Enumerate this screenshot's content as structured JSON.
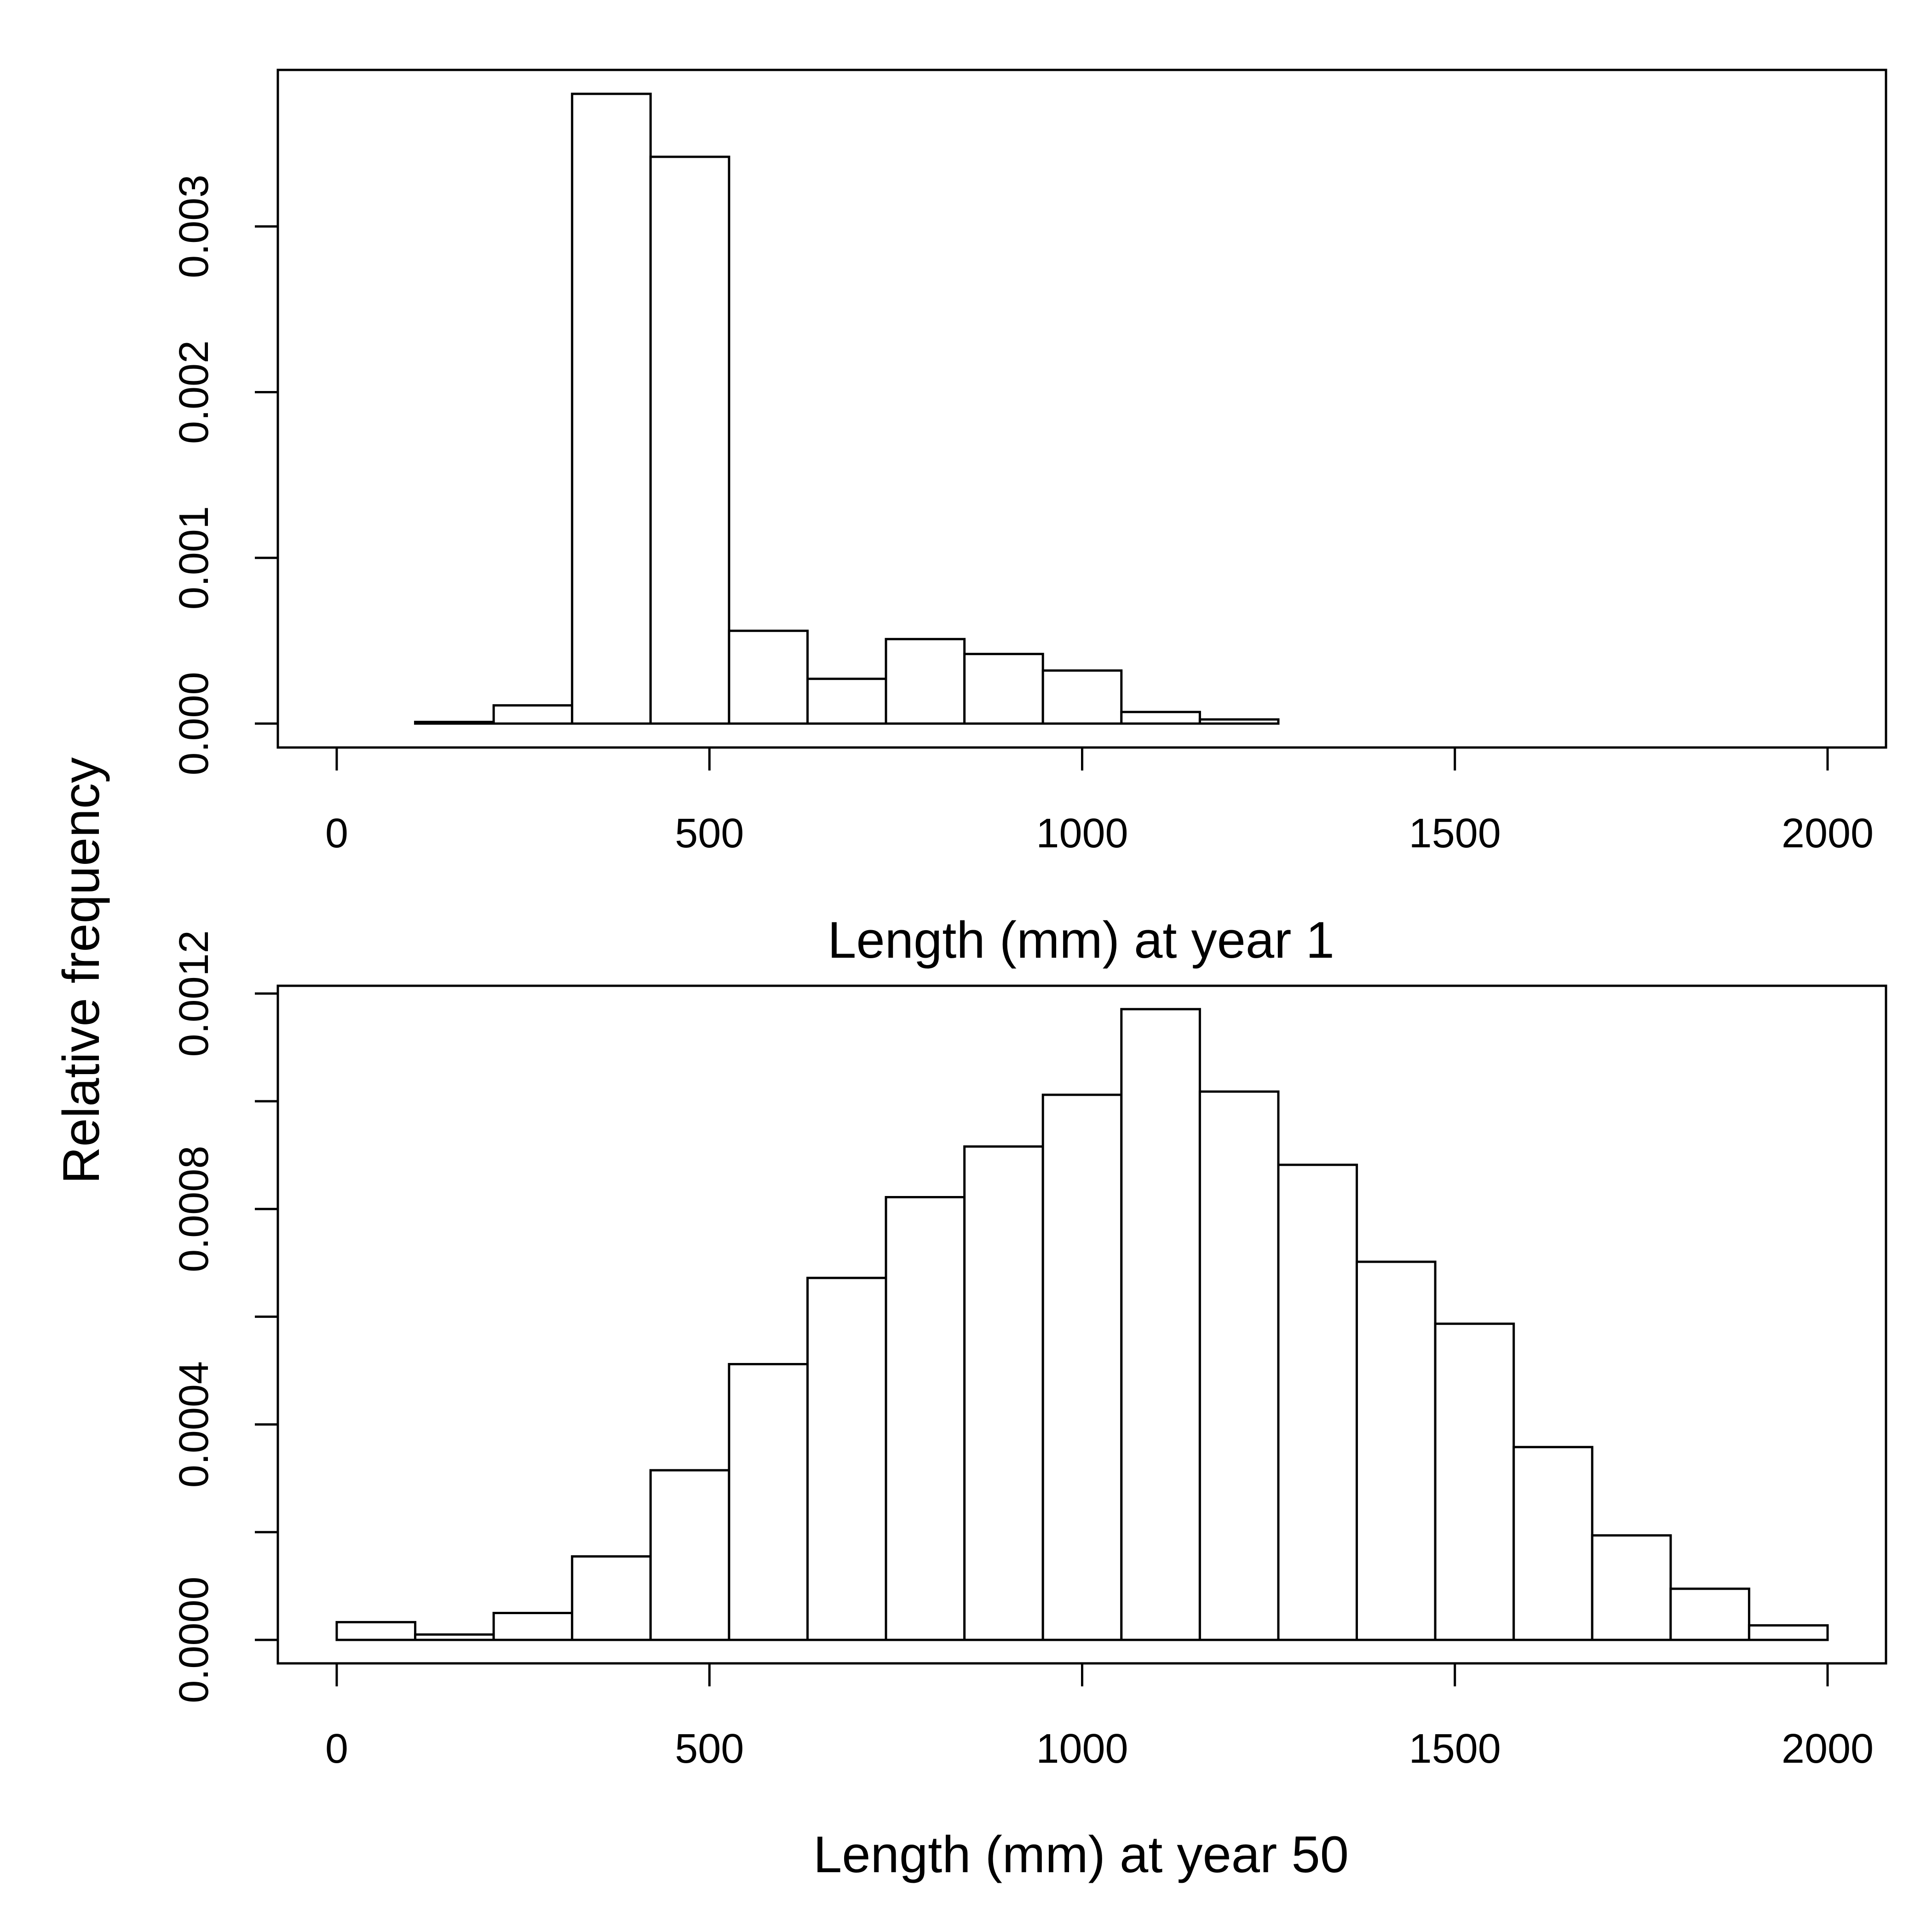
{
  "figure": {
    "ylabel": "Relative frequency",
    "background": "#ffffff",
    "stroke_color": "#000000"
  },
  "chart_data": [
    {
      "type": "bar",
      "xlabel": "Length (mm) at year 1",
      "xlim": [
        0,
        2000
      ],
      "xticks": [
        0,
        500,
        1000,
        1500,
        2000
      ],
      "xtick_labels": [
        "0",
        "500",
        "1000",
        "1500",
        "2000"
      ],
      "ylim": [
        0,
        0.0038
      ],
      "yticks": [
        0,
        0.001,
        0.002,
        0.003
      ],
      "ytick_labels": [
        "0.000",
        "0.001",
        "0.002",
        "0.003"
      ],
      "bin_width": 105.26,
      "bin_edges": [
        0,
        105.26,
        210.53,
        315.79,
        421.05,
        526.32,
        631.58,
        736.84,
        842.11,
        947.37,
        1052.63,
        1157.89,
        1263.16,
        1368.42,
        1473.68,
        1578.95,
        1684.21,
        1789.47,
        1894.74,
        2000
      ],
      "values": [
        0,
        1e-05,
        0.00011,
        0.0038,
        0.00342,
        0.00056,
        0.00027,
        0.00051,
        0.00042,
        0.00032,
        7e-05,
        2.5e-05,
        0,
        0,
        0,
        0,
        0,
        0,
        0
      ],
      "grid": false,
      "legend": "none"
    },
    {
      "type": "bar",
      "xlabel": "Length (mm) at year 50",
      "xlim": [
        0,
        2000
      ],
      "xticks": [
        0,
        500,
        1000,
        1500,
        2000
      ],
      "xtick_labels": [
        "0",
        "500",
        "1000",
        "1500",
        "2000"
      ],
      "ylim": [
        0,
        0.00117
      ],
      "yticks": [
        0,
        0.0002,
        0.0004,
        0.0006,
        0.0008,
        0.001,
        0.0012
      ],
      "ytick_labels": [
        "0.0000",
        "",
        "0.0004",
        "",
        "0.0008",
        "",
        "0.0012"
      ],
      "bin_width": 105.26,
      "bin_edges": [
        0,
        105.26,
        210.53,
        315.79,
        421.05,
        526.32,
        631.58,
        736.84,
        842.11,
        947.37,
        1052.63,
        1157.89,
        1263.16,
        1368.42,
        1473.68,
        1578.95,
        1684.21,
        1789.47,
        1894.74,
        2000
      ],
      "values": [
        3.3e-05,
        1e-05,
        5e-05,
        0.000155,
        0.000315,
        0.000512,
        0.000672,
        0.000822,
        0.000916,
        0.001012,
        0.001171,
        0.001018,
        0.000882,
        0.000702,
        0.000587,
        0.000358,
        0.000194,
        9.5e-05,
        2.7e-05
      ],
      "grid": false,
      "legend": "none"
    }
  ]
}
